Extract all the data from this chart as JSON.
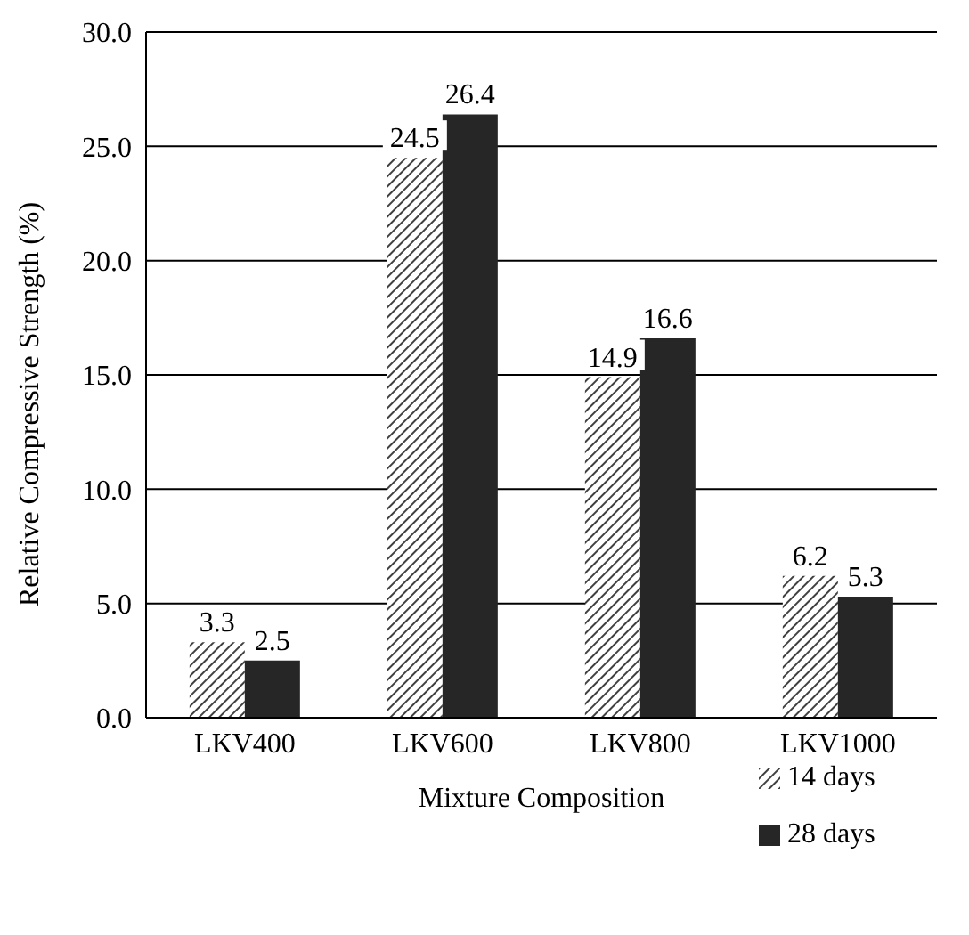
{
  "chart_data": {
    "type": "bar",
    "xlabel": "Mixture Composition",
    "ylabel": "Relative Compressive Strength (%)",
    "categories": [
      "LKV400",
      "LKV600",
      "LKV800",
      "LKV1000"
    ],
    "series": [
      {
        "name": "14 days",
        "color": "#404040",
        "values": [
          3.3,
          24.5,
          14.9,
          6.2
        ]
      },
      {
        "name": "28 days",
        "color": "#262626",
        "values": [
          2.5,
          26.4,
          16.6,
          5.3
        ]
      }
    ],
    "ylim": [
      0,
      30
    ],
    "yticks": [
      {
        "value": 0,
        "label": "0.0"
      },
      {
        "value": 5,
        "label": "5.0"
      },
      {
        "value": 10,
        "label": "10.0"
      },
      {
        "value": 15,
        "label": "15.0"
      },
      {
        "value": 20,
        "label": "20.0"
      },
      {
        "value": 25,
        "label": "25.0"
      },
      {
        "value": 30,
        "label": "30.0"
      }
    ],
    "grid": "y",
    "legend": "bottom right",
    "data_labels": true
  }
}
